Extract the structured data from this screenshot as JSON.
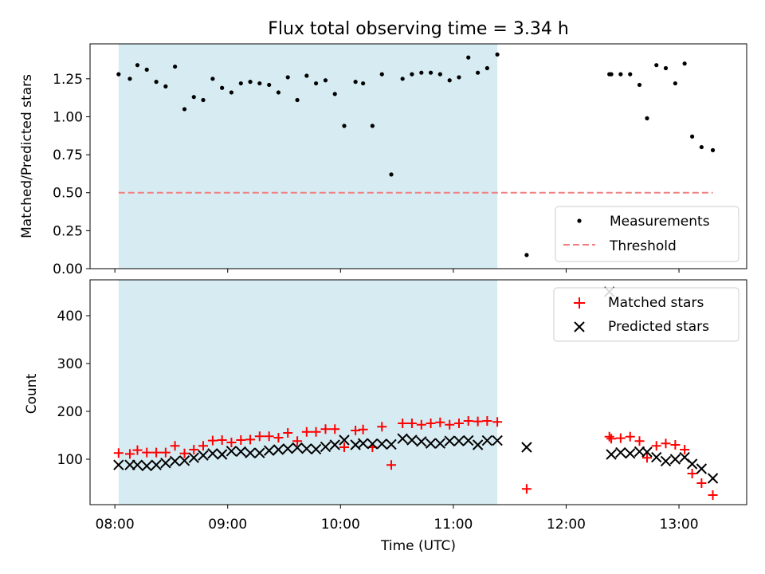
{
  "chart_data": [
    {
      "type": "scatter",
      "title": "Flux total observing time = 3.34 h",
      "ylabel": "Matched/Predicted stars",
      "xlabel": "",
      "xlim": [
        7.78,
        13.6
      ],
      "ylim": [
        0.0,
        1.48
      ],
      "yticks": [
        0.0,
        0.25,
        0.5,
        0.75,
        1.0,
        1.25
      ],
      "ytick_labels": [
        "0.00",
        "0.25",
        "0.50",
        "0.75",
        "1.00",
        "1.25"
      ],
      "highlight_span": [
        8.033,
        11.39
      ],
      "highlight_color": "#add8e6",
      "threshold": {
        "name": "Threshold",
        "y": 0.5,
        "x": [
          8.033,
          13.3
        ],
        "color": "#f08080"
      },
      "series": [
        {
          "name": "Measurements",
          "color": "#000000",
          "x": [
            8.033,
            8.133,
            8.2,
            8.283,
            8.367,
            8.45,
            8.533,
            8.617,
            8.7,
            8.783,
            8.867,
            8.95,
            9.033,
            9.117,
            9.2,
            9.283,
            9.367,
            9.45,
            9.533,
            9.617,
            9.7,
            9.783,
            9.867,
            9.95,
            10.033,
            10.133,
            10.2,
            10.283,
            10.367,
            10.45,
            10.55,
            10.633,
            10.717,
            10.8,
            10.883,
            10.967,
            11.05,
            11.133,
            11.217,
            11.3,
            11.39,
            11.65,
            12.383,
            12.4,
            12.483,
            12.567,
            12.65,
            12.717,
            12.8,
            12.883,
            12.967,
            13.05,
            13.117,
            13.2,
            13.3
          ],
          "y": [
            1.28,
            1.25,
            1.34,
            1.31,
            1.23,
            1.2,
            1.33,
            1.05,
            1.13,
            1.11,
            1.25,
            1.19,
            1.16,
            1.22,
            1.23,
            1.22,
            1.21,
            1.16,
            1.26,
            1.11,
            1.27,
            1.22,
            1.24,
            1.15,
            0.94,
            1.23,
            1.22,
            0.94,
            1.28,
            0.62,
            1.25,
            1.28,
            1.29,
            1.29,
            1.28,
            1.24,
            1.26,
            1.39,
            1.29,
            1.32,
            1.41,
            0.09,
            1.28,
            1.28,
            1.28,
            1.28,
            1.21,
            0.99,
            1.34,
            1.32,
            1.22,
            1.35,
            0.87,
            0.8,
            0.78
          ]
        }
      ],
      "legend": {
        "placement": "lower-right",
        "entries": [
          "Measurements",
          "Threshold"
        ]
      }
    },
    {
      "type": "scatter",
      "title": "",
      "xlabel": "Time (UTC)",
      "ylabel": "Count",
      "xlim": [
        7.78,
        13.6
      ],
      "ylim": [
        5,
        475
      ],
      "xticks": [
        8,
        9,
        10,
        11,
        12,
        13
      ],
      "xtick_labels": [
        "08:00",
        "09:00",
        "10:00",
        "11:00",
        "12:00",
        "13:00"
      ],
      "yticks": [
        100,
        200,
        300,
        400
      ],
      "ytick_labels": [
        "100",
        "200",
        "300",
        "400"
      ],
      "highlight_span": [
        8.033,
        11.39
      ],
      "highlight_color": "#add8e6",
      "x": [
        8.033,
        8.133,
        8.2,
        8.283,
        8.367,
        8.45,
        8.533,
        8.617,
        8.7,
        8.783,
        8.867,
        8.95,
        9.033,
        9.117,
        9.2,
        9.283,
        9.367,
        9.45,
        9.533,
        9.617,
        9.7,
        9.783,
        9.867,
        9.95,
        10.033,
        10.133,
        10.2,
        10.283,
        10.367,
        10.45,
        10.55,
        10.633,
        10.717,
        10.8,
        10.883,
        10.967,
        11.05,
        11.133,
        11.217,
        11.3,
        11.39,
        11.65,
        12.383,
        12.4,
        12.483,
        12.567,
        12.65,
        12.717,
        12.8,
        12.883,
        12.967,
        13.05,
        13.117,
        13.2,
        13.3
      ],
      "series": [
        {
          "name": "Matched stars",
          "marker": "plus",
          "color": "#ff0000",
          "values": [
            113,
            111,
            119,
            114,
            114,
            114,
            128,
            112,
            120,
            128,
            139,
            140,
            135,
            140,
            141,
            148,
            148,
            145,
            155,
            138,
            157,
            157,
            163,
            163,
            125,
            160,
            162,
            125,
            168,
            88,
            175,
            175,
            172,
            175,
            177,
            172,
            175,
            180,
            179,
            180,
            178,
            38,
            147,
            143,
            144,
            147,
            138,
            103,
            128,
            133,
            130,
            120,
            70,
            50,
            25
          ]
        },
        {
          "name": "Predicted stars",
          "marker": "x",
          "color": "#000000",
          "values": [
            88,
            88,
            88,
            86,
            88,
            92,
            96,
            97,
            103,
            108,
            112,
            110,
            117,
            116,
            113,
            113,
            118,
            120,
            122,
            124,
            122,
            121,
            126,
            130,
            140,
            130,
            133,
            132,
            132,
            131,
            143,
            140,
            137,
            133,
            133,
            138,
            138,
            139,
            130,
            139,
            139,
            125,
            450,
            110,
            114,
            112,
            116,
            115,
            104,
            96,
            100,
            104,
            90,
            80,
            60
          ]
        }
      ],
      "legend": {
        "placement": "top-right",
        "entries": [
          "Matched stars",
          "Predicted stars"
        ]
      }
    }
  ]
}
